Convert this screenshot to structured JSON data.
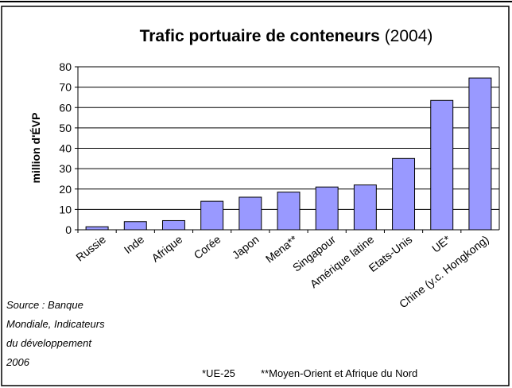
{
  "chart_data": {
    "type": "bar",
    "title": "Trafic portuaire de conteneurs",
    "title_note": "(2004)",
    "y_label": "million d'ÉVP",
    "categories": [
      "Russie",
      "Inde",
      "Afrique",
      "Corée",
      "Japon",
      "Mena**",
      "Singapour",
      "Amérique latine",
      "Etats-Unis",
      "UE*",
      "Chine (y.c. Hongkong)"
    ],
    "values": [
      1.5,
      4,
      4.5,
      14,
      16,
      18.5,
      21,
      22,
      35,
      63.5,
      74.5
    ],
    "color": "#9999ff",
    "ylim": [
      0,
      80
    ],
    "yticks": [
      0,
      10,
      20,
      30,
      40,
      50,
      60,
      70,
      80
    ],
    "grid": true,
    "source": [
      "Source    : Banque",
      "Mondiale,    Indicateurs",
      "du  développement",
      "2006"
    ],
    "footnotes": [
      "*UE-25",
      "**Moyen-Orient et Afrique du Nord"
    ]
  }
}
